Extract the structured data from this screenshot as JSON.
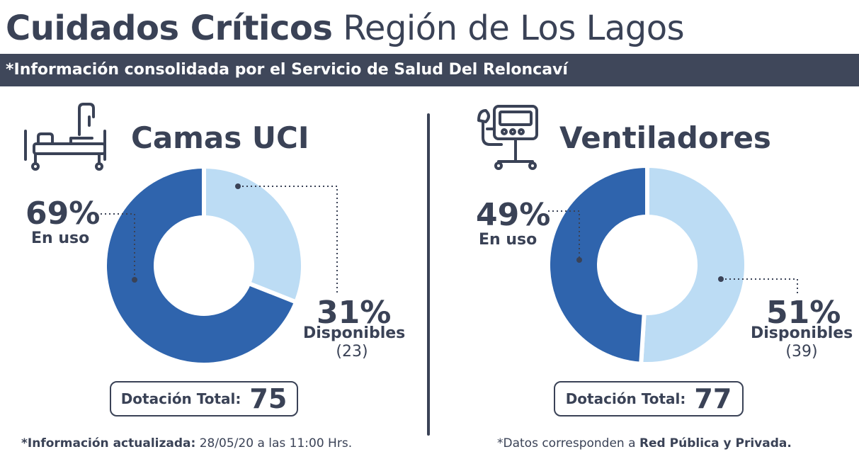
{
  "header": {
    "title_bold": "Cuidados Críticos",
    "title_light": "Región de Los Lagos",
    "banner": "*Información consolidada por el Servicio de Salud Del Reloncaví"
  },
  "colors": {
    "in_use": "#2f64ad",
    "available": "#bcdcf4",
    "text": "#3a4256",
    "banner_bg": "#3f475a"
  },
  "icons": [
    "hospital-bed-icon",
    "ventilator-icon"
  ],
  "camas": {
    "title": "Camas UCI",
    "in_use_pct": "69%",
    "in_use_label": "En uso",
    "available_pct": "31%",
    "available_label": "Disponibles",
    "available_count": "(23)",
    "total_label": "Dotación Total:",
    "total_value": "75"
  },
  "ventiladores": {
    "title": "Ventiladores",
    "in_use_pct": "49%",
    "in_use_label": "En uso",
    "available_pct": "51%",
    "available_label": "Disponibles",
    "available_count": "(39)",
    "total_label": "Dotación Total:",
    "total_value": "77"
  },
  "footer": {
    "left_bold": "*Información actualizada:",
    "left_rest": "28/05/20 a las 11:00 Hrs.",
    "right_start": "*Datos corresponden a",
    "right_bold": "Red Pública y Privada."
  },
  "chart_data": [
    {
      "type": "pie",
      "title": "Camas UCI",
      "categories": [
        "En uso",
        "Disponibles"
      ],
      "values": [
        69,
        31
      ],
      "available_count": 23,
      "total": 75
    },
    {
      "type": "pie",
      "title": "Ventiladores",
      "categories": [
        "En uso",
        "Disponibles"
      ],
      "values": [
        49,
        51
      ],
      "available_count": 39,
      "total": 77
    }
  ]
}
